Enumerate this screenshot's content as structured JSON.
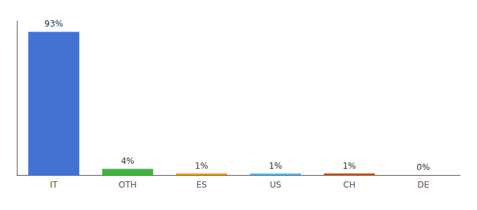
{
  "chart_data": {
    "type": "bar",
    "categories": [
      "IT",
      "OTH",
      "ES",
      "US",
      "CH",
      "DE"
    ],
    "values": [
      93,
      4,
      1,
      1,
      1,
      0
    ],
    "value_labels": [
      "93%",
      "4%",
      "1%",
      "1%",
      "1%",
      "0%"
    ],
    "colors": [
      "#4472d4",
      "#3db53d",
      "#e8a020",
      "#5bbce0",
      "#c0521a",
      "#c0521a"
    ],
    "ylim": [
      0,
      100
    ],
    "data_labels": true,
    "tick_labels": "x",
    "grid": false
  }
}
